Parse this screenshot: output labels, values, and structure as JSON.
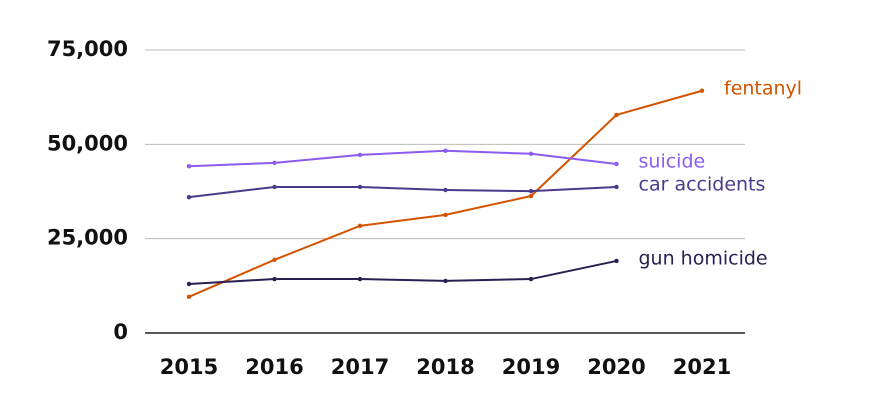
{
  "chart_data": {
    "type": "line",
    "x": [
      "2015",
      "2016",
      "2017",
      "2018",
      "2019",
      "2020",
      "2021"
    ],
    "series": [
      {
        "name": "fentanyl",
        "color": "#d35400",
        "values": [
          9600,
          19400,
          28400,
          31300,
          36300,
          57800,
          64200
        ]
      },
      {
        "name": "suicide",
        "color": "#8a5cf0",
        "values": [
          44200,
          45100,
          47200,
          48300,
          47500,
          44800,
          null
        ]
      },
      {
        "name": "car accidents",
        "color": "#4b3a8c",
        "values": [
          36000,
          38700,
          38700,
          37900,
          37600,
          38700,
          null
        ]
      },
      {
        "name": "gun homicide",
        "color": "#2a2050",
        "values": [
          13000,
          14300,
          14300,
          13800,
          14300,
          19100,
          null
        ]
      }
    ],
    "ylim": [
      0,
      75000
    ],
    "yticks": [
      0,
      {
        "value": 25000,
        "label": "25,000"
      },
      {
        "value": 50000,
        "label": "50,000"
      },
      {
        "value": 75000,
        "label": "75,000"
      }
    ],
    "grid": true
  }
}
